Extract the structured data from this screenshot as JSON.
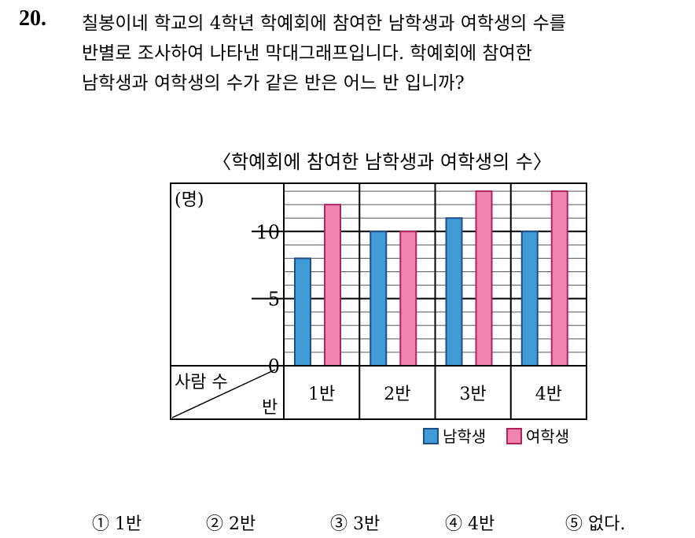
{
  "question": {
    "number": "20.",
    "lines": [
      "칠봉이네 학교의 4학년 학예회에 참여한 남학생과 여학생의 수를",
      "반별로 조사하여 나타낸 막대그래프입니다.  학예회에 참여한",
      "남학생과 여학생의 수가 같은 반은 어느 반 입니까?"
    ]
  },
  "chart_data": {
    "type": "bar",
    "title": "〈학예회에 참여한 남학생과 여학생의 수〉",
    "unit_label": "(명)",
    "corner_top": "사람 수",
    "corner_bottom": "반",
    "categories": [
      "1반",
      "2반",
      "3반",
      "4반"
    ],
    "series": [
      {
        "name": "남학생",
        "values": [
          8,
          10,
          11,
          10
        ],
        "color": "#3f9bd6"
      },
      {
        "name": "여학생",
        "values": [
          12,
          10,
          13,
          13
        ],
        "color": "#ef84b1"
      }
    ],
    "ylim": [
      0,
      13
    ],
    "y_tick_labels": [
      "0",
      "5",
      "10"
    ],
    "y_tick_values": [
      0,
      5,
      10
    ],
    "grid": true,
    "legend_position": "bottom-right"
  },
  "choices": [
    "① 1반",
    "② 2반",
    "③ 3반",
    "④ 4반",
    "⑤ 없다."
  ]
}
